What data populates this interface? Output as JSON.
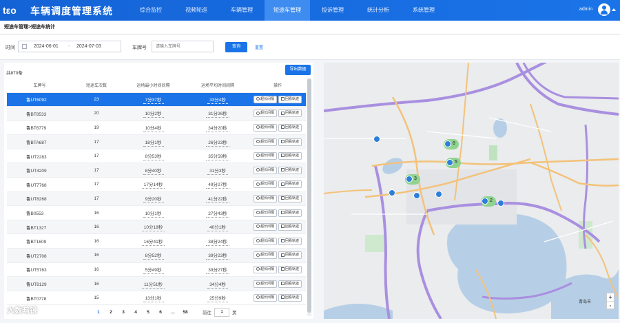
{
  "header": {
    "app_title": "车辆调度管理系统",
    "nav": [
      "综合监控",
      "视频轮巡",
      "车辆管理",
      "短途车管理",
      "投诉管理",
      "统计分析",
      "系统管理"
    ],
    "active_nav": "短途车管理",
    "user": "admin"
  },
  "breadcrumb": "短途车管理>短途车统计",
  "filter": {
    "time_label": "时间",
    "date_start": "2024-06-01",
    "date_sep": "-",
    "date_end": "2024-07-03",
    "plate_label": "车牌号",
    "plate_placeholder": "请输入车牌号",
    "query_label": "查询",
    "reset_label": "重置"
  },
  "table": {
    "total": "共870条",
    "export_label": "导出数据",
    "columns": [
      "车牌号",
      "短途车次数",
      "运场最小时间间隔",
      "运场平均时间间隔",
      "操作"
    ],
    "op_labels": [
      "超长间隔",
      "回看轨迹"
    ],
    "rows": [
      {
        "plate": "鲁UT6092",
        "count": "23",
        "min": "7分37秒",
        "avg": "33分4秒"
      },
      {
        "plate": "鲁BT8533",
        "count": "20",
        "min": "10分2秒",
        "avg": "31分26秒"
      },
      {
        "plate": "鲁BT6779",
        "count": "19",
        "min": "10分4秒",
        "avg": "34分20秒"
      },
      {
        "plate": "鲁BTA687",
        "count": "17",
        "min": "18分1秒",
        "avg": "26分23秒"
      },
      {
        "plate": "鲁UT2283",
        "count": "17",
        "min": "8分53秒",
        "avg": "35分59秒"
      },
      {
        "plate": "鲁UT4209",
        "count": "17",
        "min": "8分40秒",
        "avg": "31分3秒"
      },
      {
        "plate": "鲁UT7768",
        "count": "17",
        "min": "17分14秒",
        "avg": "49分27秒"
      },
      {
        "plate": "鲁UT8268",
        "count": "17",
        "min": "9分20秒",
        "avg": "41分22秒"
      },
      {
        "plate": "鲁B0553",
        "count": "16",
        "min": "10分1秒",
        "avg": "27分43秒"
      },
      {
        "plate": "鲁BT1327",
        "count": "16",
        "min": "10分18秒",
        "avg": "40分1秒"
      },
      {
        "plate": "鲁BT1609",
        "count": "16",
        "min": "16分41秒",
        "avg": "38分24秒"
      },
      {
        "plate": "鲁UT2708",
        "count": "16",
        "min": "8分52秒",
        "avg": "39分23秒"
      },
      {
        "plate": "鲁UT5763",
        "count": "16",
        "min": "5分49秒",
        "avg": "39分27秒"
      },
      {
        "plate": "鲁UT8129",
        "count": "16",
        "min": "11分51秒",
        "avg": "34分4秒"
      },
      {
        "plate": "鲁BT0778",
        "count": "15",
        "min": "13分1秒",
        "avg": "25分9秒"
      }
    ],
    "selected_row": 0
  },
  "pagination": {
    "pages": [
      "1",
      "2",
      "3",
      "4",
      "5",
      "6",
      "...",
      "58"
    ],
    "active_page": "1",
    "goto_label": "前往",
    "goto_value": "1",
    "page_unit": "页"
  },
  "map": {
    "clusters": [
      "8",
      "5",
      "3",
      "2"
    ],
    "labels": [
      "青岛市"
    ],
    "zoom_in": "+",
    "zoom_out": "-"
  },
  "watermark": "大数暗镜"
}
